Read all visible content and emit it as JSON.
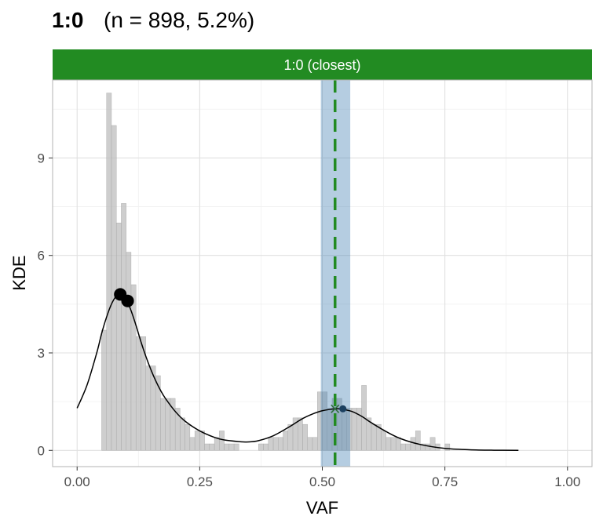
{
  "chart_data": {
    "type": "histogram-density",
    "title_bold": "1:0",
    "title_rest": "(n = 898, 5.2%)",
    "strip_label": "1:0 (closest)",
    "xlabel": "VAF",
    "ylabel": "KDE",
    "xlim": [
      -0.05,
      1.05
    ],
    "ylim": [
      -0.5,
      11.4
    ],
    "x_ticks": [
      0.0,
      0.25,
      0.5,
      0.75,
      1.0
    ],
    "x_tick_labels": [
      "0.00",
      "0.25",
      "0.50",
      "0.75",
      "1.00"
    ],
    "y_ticks": [
      0,
      3,
      6,
      9
    ],
    "y_tick_labels": [
      "0",
      "3",
      "6",
      "9"
    ],
    "grid": true,
    "colors": {
      "strip": "#228B22",
      "histogram": "#BDBDBD",
      "band": "#4682B4",
      "target_line": "#228B22",
      "density": "#000000",
      "peak": "#000000",
      "secondary_peak": "#1B3F5F"
    },
    "histogram": {
      "bin_width": 0.01,
      "bin_starts": [
        0.05,
        0.06,
        0.07,
        0.08,
        0.09,
        0.1,
        0.11,
        0.12,
        0.13,
        0.14,
        0.15,
        0.16,
        0.17,
        0.18,
        0.19,
        0.2,
        0.21,
        0.22,
        0.23,
        0.24,
        0.25,
        0.26,
        0.27,
        0.28,
        0.29,
        0.3,
        0.31,
        0.32,
        0.33,
        0.34,
        0.35,
        0.36,
        0.37,
        0.38,
        0.39,
        0.4,
        0.41,
        0.42,
        0.43,
        0.44,
        0.45,
        0.46,
        0.47,
        0.48,
        0.49,
        0.5,
        0.51,
        0.52,
        0.53,
        0.54,
        0.55,
        0.56,
        0.57,
        0.58,
        0.59,
        0.6,
        0.61,
        0.62,
        0.63,
        0.64,
        0.65,
        0.66,
        0.67,
        0.68,
        0.69,
        0.7,
        0.71,
        0.72,
        0.73,
        0.74,
        0.75
      ],
      "values": [
        3.7,
        11.0,
        10.0,
        7.0,
        7.6,
        6.1,
        5.1,
        3.5,
        3.5,
        2.6,
        2.6,
        2.3,
        1.6,
        1.6,
        1.6,
        1.3,
        1.0,
        0.8,
        0.4,
        0.6,
        0.6,
        0.2,
        0.2,
        0.4,
        0.6,
        0.2,
        0.2,
        0.2,
        0.0,
        0.0,
        0.0,
        0.0,
        0.2,
        0.2,
        0.4,
        0.4,
        0.4,
        0.6,
        0.8,
        1.0,
        1.0,
        0.8,
        0.4,
        0.4,
        1.8,
        1.8,
        1.3,
        1.6,
        1.6,
        1.3,
        1.3,
        1.3,
        1.3,
        2.0,
        1.0,
        0.8,
        0.8,
        0.6,
        0.4,
        0.4,
        0.4,
        0.2,
        0.2,
        0.4,
        0.6,
        0.2,
        0.2,
        0.4,
        0.2,
        0.0,
        0.2
      ]
    },
    "density_curve": {
      "x": [
        0.0,
        0.02,
        0.04,
        0.05,
        0.06,
        0.07,
        0.08,
        0.09,
        0.1,
        0.11,
        0.12,
        0.13,
        0.14,
        0.15,
        0.16,
        0.17,
        0.18,
        0.2,
        0.22,
        0.25,
        0.28,
        0.3,
        0.33,
        0.35,
        0.37,
        0.4,
        0.43,
        0.46,
        0.48,
        0.5,
        0.52,
        0.53,
        0.54,
        0.56,
        0.58,
        0.6,
        0.63,
        0.66,
        0.7,
        0.75,
        0.8,
        0.85,
        0.9
      ],
      "y": [
        1.3,
        2.0,
        3.0,
        3.6,
        4.1,
        4.5,
        4.75,
        4.8,
        4.65,
        4.3,
        3.85,
        3.35,
        2.9,
        2.5,
        2.15,
        1.85,
        1.6,
        1.2,
        0.9,
        0.6,
        0.4,
        0.32,
        0.27,
        0.26,
        0.3,
        0.45,
        0.7,
        0.98,
        1.12,
        1.22,
        1.27,
        1.28,
        1.27,
        1.2,
        1.05,
        0.85,
        0.58,
        0.36,
        0.18,
        0.06,
        0.02,
        0.005,
        0.0
      ]
    },
    "peaks": [
      {
        "x": 0.088,
        "y": 4.8
      },
      {
        "x": 0.103,
        "y": 4.6
      }
    ],
    "secondary_peak": {
      "x": 0.542,
      "y": 1.28
    },
    "target_cross": {
      "x": 0.526,
      "y": 1.28
    },
    "band": {
      "xmin": 0.497,
      "xmax": 0.557
    },
    "target_line_x": 0.526
  }
}
